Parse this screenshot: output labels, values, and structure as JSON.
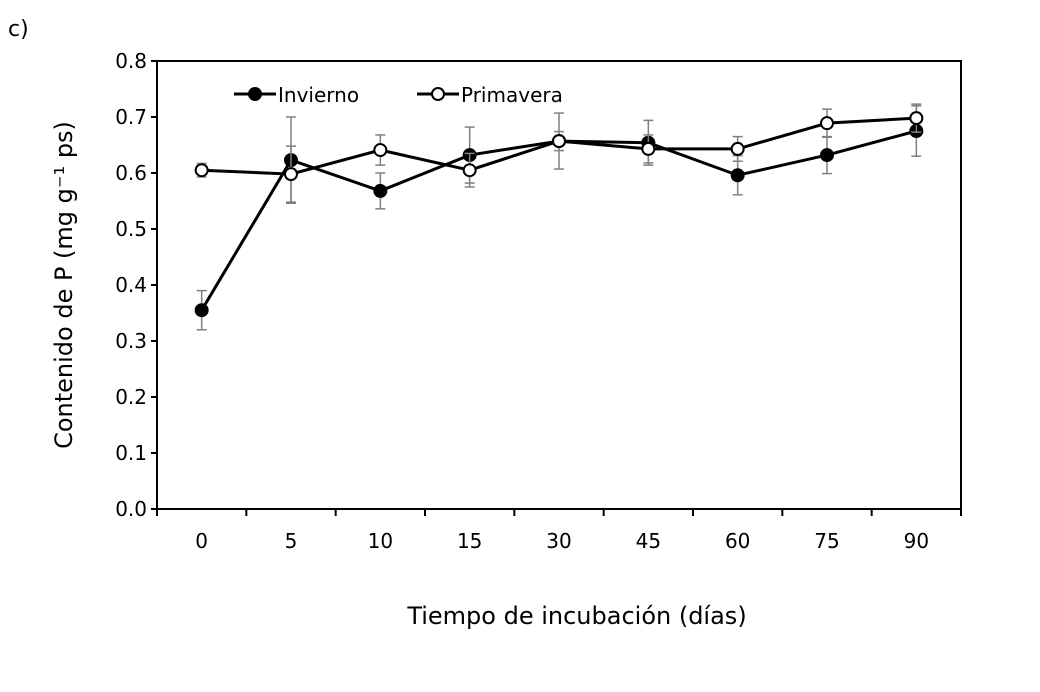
{
  "chart_data": {
    "type": "line",
    "panel_label": "c)",
    "xlabel": "Tiempo de incubación (días)",
    "ylabel": "Contenido de P  (mg g⁻¹ ps)",
    "categories": [
      "0",
      "5",
      "10",
      "15",
      "30",
      "45",
      "60",
      "75",
      "90"
    ],
    "ylim": [
      0,
      0.8
    ],
    "yticks": [
      "0.0",
      "0.1",
      "0.2",
      "0.3",
      "0.4",
      "0.5",
      "0.6",
      "0.7",
      "0.8"
    ],
    "grid": false,
    "legend_position": "top-left",
    "series": [
      {
        "name": "Invierno",
        "marker": "filled-circle",
        "values": [
          0.355,
          0.623,
          0.568,
          0.632,
          0.657,
          0.654,
          0.596,
          0.632,
          0.675
        ],
        "errors": [
          0.035,
          0.077,
          0.032,
          0.05,
          0.05,
          0.04,
          0.035,
          0.033,
          0.045
        ]
      },
      {
        "name": "Primavera",
        "marker": "open-circle",
        "values": [
          0.605,
          0.598,
          0.641,
          0.605,
          0.657,
          0.643,
          0.643,
          0.689,
          0.698
        ],
        "errors": [
          0.012,
          0.05,
          0.027,
          0.03,
          0.017,
          0.025,
          0.022,
          0.025,
          0.025
        ]
      }
    ],
    "colors": {
      "line": "#000000",
      "errorbar": "#808080"
    }
  }
}
